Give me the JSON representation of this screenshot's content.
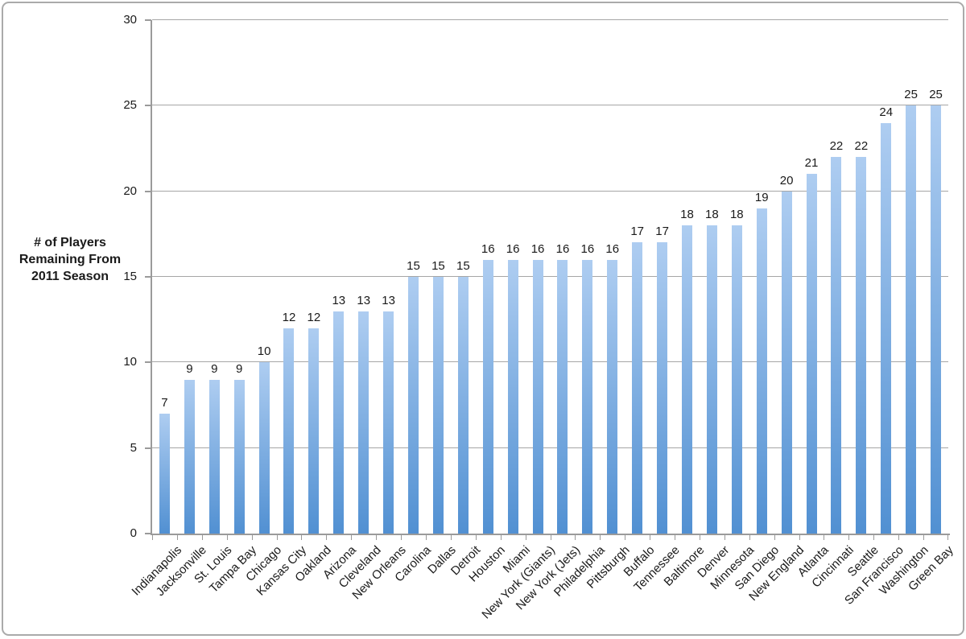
{
  "chart_data": {
    "type": "bar",
    "title": "",
    "ylabel": "# of Players Remaining From 2011 Season",
    "ylabel_lines": [
      "# of Players",
      "Remaining From",
      "2011 Season"
    ],
    "xlabel": "",
    "ylim": [
      0,
      30
    ],
    "yticks": [
      0,
      5,
      10,
      15,
      20,
      25,
      30
    ],
    "grid": true,
    "legend_position": "none",
    "bar_value_labels_shown": true,
    "categories": [
      "Indianapolis",
      "Jacksonville",
      "St. Louis",
      "Tampa Bay",
      "Chicago",
      "Kansas City",
      "Oakland",
      "Arizona",
      "Cleveland",
      "New Orleans",
      "Carolina",
      "Dallas",
      "Detroit",
      "Houston",
      "Miami",
      "New York (Giants)",
      "New York (Jets)",
      "Philadelphia",
      "Pittsburgh",
      "Buffalo",
      "Tennessee",
      "Baltimore",
      "Denver",
      "Minnesota",
      "San Diego",
      "New England",
      "Atlanta",
      "Cincinnati",
      "Seattle",
      "San Francisco",
      "Washington",
      "Green Bay"
    ],
    "values": [
      7,
      9,
      9,
      9,
      10,
      12,
      12,
      13,
      13,
      13,
      15,
      15,
      15,
      16,
      16,
      16,
      16,
      16,
      16,
      17,
      17,
      18,
      18,
      18,
      19,
      20,
      21,
      22,
      22,
      24,
      25,
      25
    ],
    "colors": {
      "bar_gradient_top": "#aecdf1",
      "bar_gradient_bottom": "#5190d2",
      "gridline": "#a6a6a6",
      "axis": "#9a9a9a",
      "text": "#1a1a1a",
      "background": "#ffffff",
      "frame_border": "#aaaaaa"
    }
  }
}
